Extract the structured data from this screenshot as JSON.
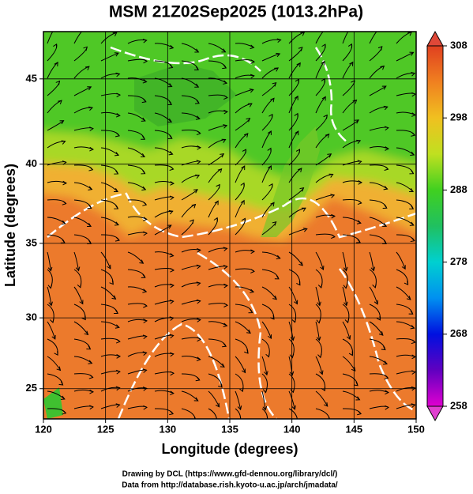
{
  "title": "MSM 21Z02Sep2025 (1013.2hPa)",
  "x_label": "Longitude (degrees)",
  "y_label": "Latitude  (degrees)",
  "projection": "mercator",
  "xlim": [
    120,
    150
  ],
  "xticks": [
    120,
    125,
    130,
    135,
    140,
    145,
    150
  ],
  "ylim": [
    22.8,
    47.6
  ],
  "yticks": [
    25,
    30,
    35,
    40,
    45
  ],
  "colorbar": {
    "lim": [
      258,
      308
    ],
    "ticks": [
      258,
      268,
      278,
      288,
      298,
      308
    ]
  },
  "footer": [
    "Drawing by DCL (https://www.gfd-dennou.org/library/dcl/)",
    "Data from http://database.rish.kyoto-u.ac.jp/arch/jmadata/"
  ]
}
